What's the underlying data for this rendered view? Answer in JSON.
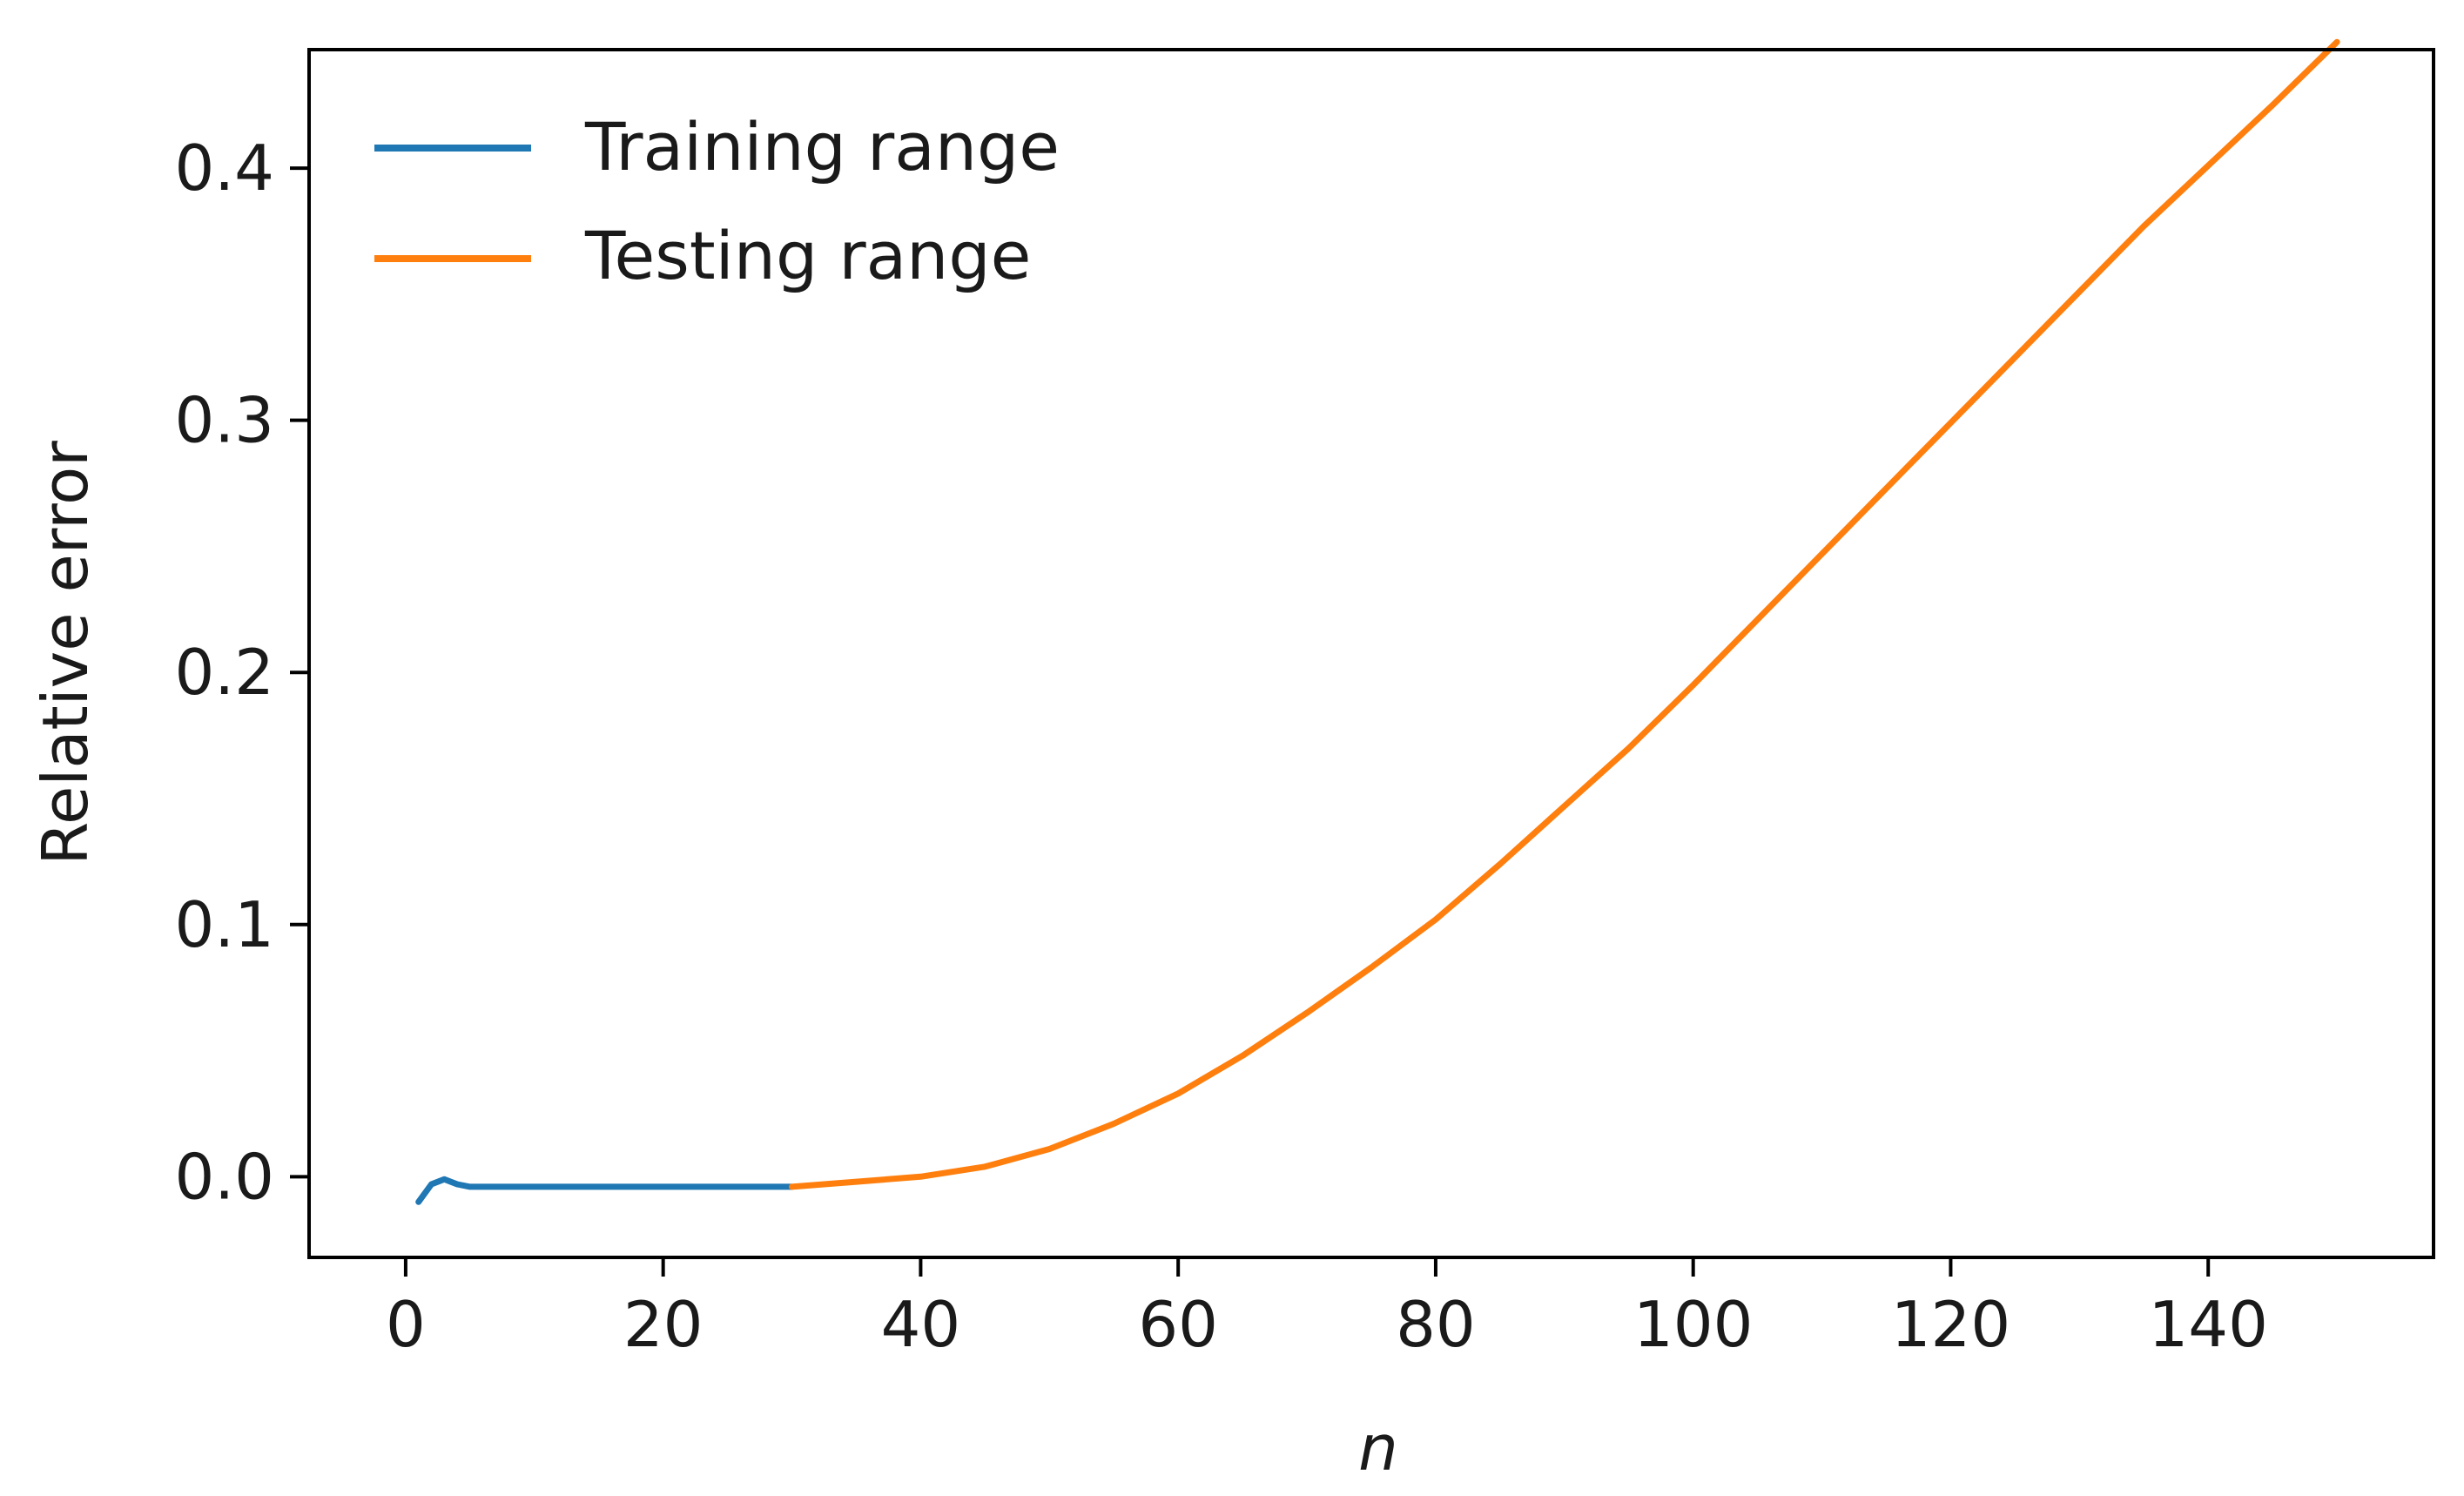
{
  "chart_data": {
    "type": "line",
    "title": "",
    "xlabel": "n",
    "ylabel": "Relative error",
    "xlim": [
      -7.5,
      157.5
    ],
    "ylim": [
      -0.032,
      0.447
    ],
    "xticks": [
      0,
      20,
      40,
      60,
      80,
      100,
      120,
      140
    ],
    "xtick_labels": [
      "0",
      "20",
      "40",
      "60",
      "80",
      "100",
      "120",
      "140"
    ],
    "yticks": [
      0.0,
      0.1,
      0.2,
      0.3,
      0.4
    ],
    "ytick_labels": [
      "0.0",
      "0.1",
      "0.2",
      "0.3",
      "0.4"
    ],
    "grid": false,
    "legend_position": "top-left",
    "series": [
      {
        "name": "Training range",
        "color": "#1f77b4",
        "x": [
          1,
          2,
          3,
          4,
          5,
          6,
          8,
          10,
          15,
          20,
          25,
          30
        ],
        "y": [
          -0.01,
          -0.003,
          -0.001,
          -0.003,
          -0.004,
          -0.004,
          -0.004,
          -0.004,
          -0.004,
          -0.004,
          -0.004,
          -0.004
        ]
      },
      {
        "name": "Testing range",
        "color": "#ff7f0e",
        "x": [
          30,
          35,
          40,
          45,
          50,
          55,
          60,
          65,
          70,
          75,
          80,
          85,
          90,
          95,
          100,
          105,
          110,
          115,
          120,
          125,
          130,
          135,
          140,
          145,
          150
        ],
        "y": [
          -0.004,
          -0.002,
          0.0,
          0.004,
          0.011,
          0.021,
          0.033,
          0.048,
          0.065,
          0.083,
          0.102,
          0.124,
          0.147,
          0.17,
          0.195,
          0.221,
          0.247,
          0.273,
          0.299,
          0.325,
          0.351,
          0.377,
          0.401,
          0.425,
          0.45
        ]
      }
    ]
  }
}
